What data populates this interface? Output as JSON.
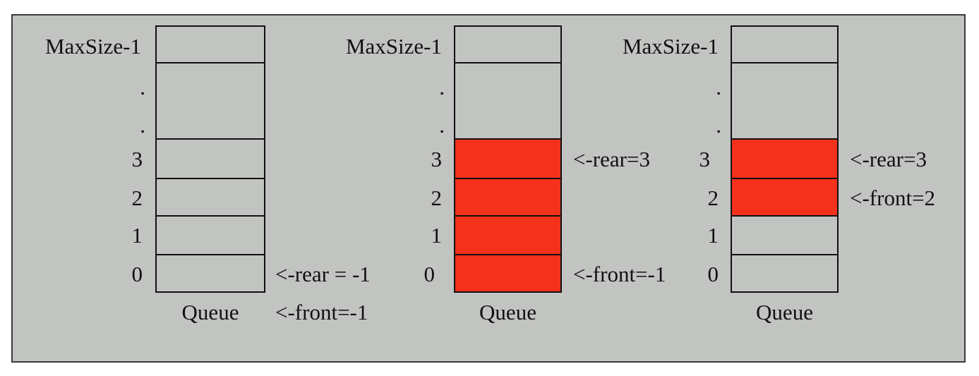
{
  "colors": {
    "background": "#c2c4c1",
    "filled_slot": "#f4311b",
    "border": "#111111"
  },
  "queues": [
    {
      "index_labels": {
        "max": "MaxSize-1",
        "dot_top": ".",
        "dot_bottom": ".",
        "i3": "3",
        "i2": "2",
        "i1": "1",
        "i0": "0"
      },
      "caption": "Queue",
      "filled_indices": [],
      "pointers": {
        "rear": "<-rear = -1",
        "front": "<-front=-1"
      }
    },
    {
      "index_labels": {
        "max": "MaxSize-1",
        "dot_top": ".",
        "dot_bottom": ".",
        "i3": "3",
        "i2": "2",
        "i1": "1",
        "i0": "0"
      },
      "caption": "Queue",
      "filled_indices": [
        0,
        1,
        2,
        3
      ],
      "pointers": {
        "rear": "<-rear=3",
        "front": "<-front=-1"
      }
    },
    {
      "index_labels": {
        "max": "MaxSize-1",
        "dot_top": ".",
        "dot_bottom": ".",
        "i3": "3",
        "i2": "2",
        "i1": "1",
        "i0": "0"
      },
      "caption": "Queue",
      "filled_indices": [
        2,
        3
      ],
      "pointers": {
        "rear": "<-rear=3",
        "front": "<-front=2"
      }
    }
  ]
}
